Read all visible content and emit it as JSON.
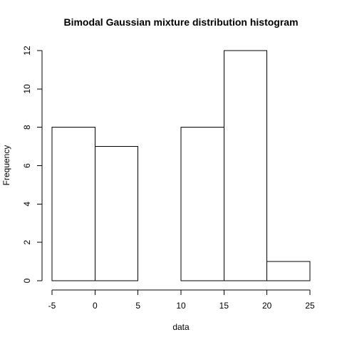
{
  "chart_data": {
    "type": "bar",
    "title": "Bimodal Gaussian mixture distribution histogram",
    "xlabel": "data",
    "ylabel": "Frequency",
    "bins": [
      {
        "start": -5,
        "end": 0,
        "value": 8
      },
      {
        "start": 0,
        "end": 5,
        "value": 7
      },
      {
        "start": 5,
        "end": 10,
        "value": 0
      },
      {
        "start": 10,
        "end": 15,
        "value": 8
      },
      {
        "start": 15,
        "end": 20,
        "value": 12
      },
      {
        "start": 20,
        "end": 25,
        "value": 1
      }
    ],
    "xlim": [
      -5,
      25
    ],
    "ylim": [
      0,
      12
    ],
    "x_ticks": [
      "-5",
      "0",
      "5",
      "10",
      "15",
      "20",
      "25"
    ],
    "y_ticks": [
      "0",
      "2",
      "4",
      "6",
      "8",
      "10",
      "12"
    ],
    "grid": false,
    "bar_fill": "#ffffff",
    "bar_stroke": "#000000"
  }
}
